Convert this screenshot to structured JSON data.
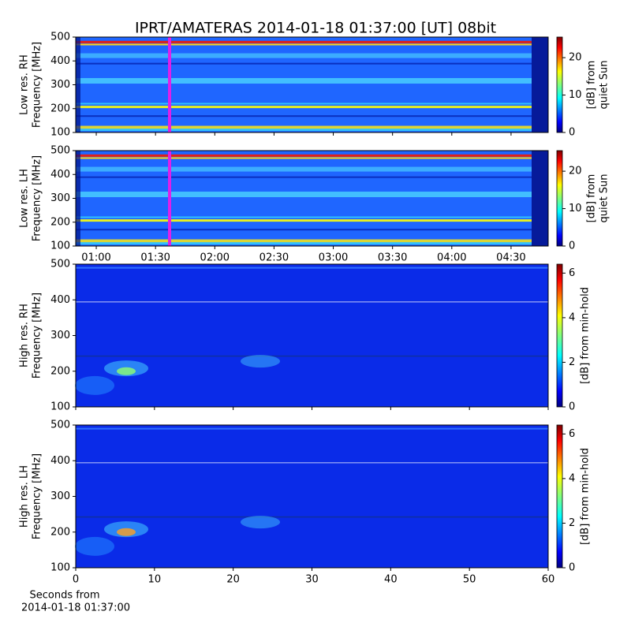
{
  "title": "IPRT/AMATERAS 2014-01-18 01:37:00 [UT]   08bit",
  "xlabel": [
    "Seconds from",
    "2014-01-18 01:37:00"
  ],
  "chart_data": [
    {
      "type": "spectrogram",
      "ylabel": [
        "Low res. RH",
        "Frequency [MHz]"
      ],
      "ylim": [
        100,
        500
      ],
      "yticks": [
        100,
        200,
        300,
        400,
        500
      ],
      "xlim": [
        49.6,
        288.8
      ],
      "colorbar_label": [
        "[dB] from",
        "quiet Sun"
      ],
      "clim": [
        0,
        25.5
      ],
      "cticks": [
        0,
        10,
        20
      ]
    },
    {
      "type": "spectrogram",
      "ylabel": [
        "Low res. LH",
        "Frequency [MHz]"
      ],
      "ylim": [
        100,
        500
      ],
      "yticks": [
        100,
        200,
        300,
        400,
        500
      ],
      "xlim": [
        49.6,
        288.8
      ],
      "xticks": [
        {
          "value": 60,
          "label": "01:00"
        },
        {
          "value": 90,
          "label": "01:30"
        },
        {
          "value": 120,
          "label": "02:00"
        },
        {
          "value": 150,
          "label": "02:30"
        },
        {
          "value": 180,
          "label": "03:00"
        },
        {
          "value": 210,
          "label": "03:30"
        },
        {
          "value": 240,
          "label": "04:00"
        },
        {
          "value": 270,
          "label": "04:30"
        }
      ],
      "colorbar_label": [
        "[dB] from",
        "quiet Sun"
      ],
      "clim": [
        0,
        25.5
      ],
      "cticks": [
        0,
        10,
        20
      ]
    },
    {
      "type": "spectrogram",
      "ylabel": [
        "High res. RH",
        "Frequency [MHz]"
      ],
      "ylim": [
        100,
        500
      ],
      "yticks": [
        100,
        200,
        300,
        400,
        500
      ],
      "xlim": [
        0,
        60
      ],
      "colorbar_label": [
        "[dB] from min-hold"
      ],
      "clim": [
        0,
        6.4
      ],
      "cticks": [
        0,
        2,
        4,
        6
      ]
    },
    {
      "type": "spectrogram",
      "ylabel": [
        "High res. LH",
        "Frequency [MHz]"
      ],
      "ylim": [
        100,
        500
      ],
      "yticks": [
        100,
        200,
        300,
        400,
        500
      ],
      "xlim": [
        0,
        60
      ],
      "xticks": [
        0,
        10,
        20,
        30,
        40,
        50,
        60
      ],
      "colorbar_label": [
        "[dB] from min-hold"
      ],
      "clim": [
        0,
        6.4
      ],
      "cticks": [
        0,
        2,
        4,
        6
      ]
    }
  ]
}
